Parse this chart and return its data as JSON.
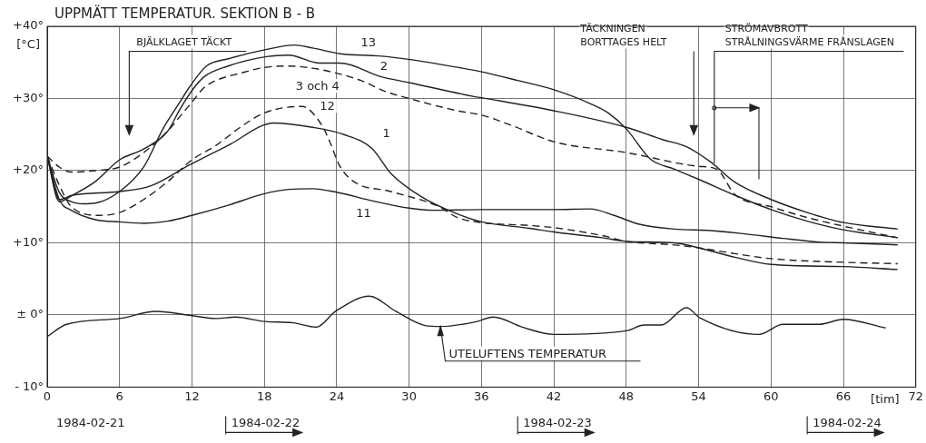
{
  "chart_data": {
    "type": "line",
    "title": "UPPMÄTT TEMPERATUR. SEKTION B - B",
    "ylabel": "[°C]",
    "xlabel": "[tim]",
    "xlim": [
      0,
      72
    ],
    "xticks": [
      0,
      6,
      12,
      18,
      24,
      30,
      36,
      42,
      48,
      54,
      60,
      66,
      72
    ],
    "ylim": [
      -10,
      40
    ],
    "yticks": [
      {
        "value": 40,
        "label": "+40°"
      },
      {
        "value": 30,
        "label": "+30°"
      },
      {
        "value": 20,
        "label": "+20°"
      },
      {
        "value": 10,
        "label": "+10°"
      },
      {
        "value": 0,
        "label": "± 0°"
      },
      {
        "value": -10,
        "label": "- 10°"
      }
    ],
    "grid": true,
    "legend": false,
    "annotations": [
      "BJÄLKLAGET TÄCKT",
      "TÄCKNINGEN\nBORTTAGES HELT",
      {
        "text": "STRÖMAVBROTT\nSTRÅLNINGSVÄRME FRÅNSLAGEN",
        "x": 55.3,
        "y": 21
      },
      "1984-02-21",
      "1984-02-22",
      "1984-02-23",
      "1984-02-24",
      {
        "text": "UTELUFTENS TEMPERATUR",
        "x": 32.6,
        "y": -1.6
      }
    ],
    "series": [
      {
        "name": "13",
        "color": "#222222",
        "line_style": "solid",
        "x": [
          0,
          1,
          2,
          3,
          4,
          6,
          8,
          9.6,
          11,
          11.8,
          13.2,
          15,
          18.2,
          20.5,
          22,
          24.3,
          27.5,
          30.5,
          33,
          36,
          39,
          42,
          45,
          46.5,
          48,
          50,
          52,
          54,
          57,
          60,
          63,
          66,
          70.5
        ],
        "values": [
          22,
          17,
          15.7,
          15.4,
          15.5,
          17.1,
          20.5,
          25.8,
          29.5,
          31.6,
          34.5,
          35.5,
          36.8,
          37.4,
          37,
          36.2,
          35.9,
          35.3,
          34.6,
          33.7,
          32.5,
          31.2,
          29.3,
          28,
          25.8,
          21.6,
          20.2,
          18.8,
          16.6,
          14.6,
          13,
          11.8,
          10.7
        ]
      },
      {
        "name": "2",
        "color": "#222222",
        "line_style": "solid",
        "x": [
          0,
          1,
          2,
          4,
          6,
          8,
          10,
          11,
          12,
          13,
          15,
          18.2,
          20,
          22.6,
          24.3,
          27.7,
          30,
          35.3,
          36,
          42,
          48,
          51,
          53,
          55,
          57,
          60,
          63,
          66,
          70.5
        ],
        "values": [
          22,
          15.7,
          16.5,
          18.5,
          21.5,
          23,
          25.5,
          28.5,
          31.1,
          33,
          34.5,
          35.8,
          36,
          34.9,
          34.9,
          33,
          32.2,
          30.3,
          30.1,
          28.3,
          26,
          24.3,
          23.3,
          21.2,
          18.4,
          16,
          14.2,
          12.8,
          11.9
        ]
      },
      {
        "name": "3 och 4",
        "color": "#222222",
        "line_style": "dashed",
        "x": [
          0,
          1,
          2,
          4,
          6,
          8,
          10,
          11,
          12,
          13,
          14,
          16,
          18,
          20,
          22,
          24,
          26,
          28,
          30,
          34,
          36,
          38.6,
          42,
          48,
          54,
          55.5,
          57,
          60,
          63,
          66,
          70.5
        ],
        "values": [
          22,
          20.5,
          19.8,
          20,
          20.5,
          22.5,
          25.5,
          27.5,
          29.5,
          31.5,
          32.5,
          33.5,
          34.3,
          34.5,
          34.2,
          33.5,
          32.5,
          31,
          30,
          28.3,
          27.7,
          26.2,
          24,
          22.5,
          20.6,
          20.2,
          16.7,
          15,
          13.5,
          12.3,
          10.7
        ]
      },
      {
        "name": "12",
        "color": "#222222",
        "line_style": "dashed",
        "x": [
          0,
          1,
          2,
          4.3,
          6,
          8,
          10,
          12,
          14,
          16,
          18,
          21.1,
          22.8,
          23.5,
          24.2,
          25.4,
          28.5,
          32.5,
          34,
          36,
          40,
          42,
          46,
          48,
          52,
          54,
          57,
          60,
          66,
          70.5
        ],
        "values": [
          22,
          18,
          15,
          13.8,
          14.2,
          16,
          18.5,
          21.5,
          23.5,
          26,
          28,
          28.9,
          26.2,
          23.7,
          20.8,
          18.5,
          17.1,
          15,
          13.5,
          12.8,
          12.4,
          12.1,
          11,
          10.2,
          9.7,
          9.3,
          8.5,
          7.8,
          7.3,
          7.1
        ]
      },
      {
        "name": "1",
        "color": "#222222",
        "line_style": "solid",
        "x": [
          0,
          1,
          2.1,
          6,
          8.6,
          11.8,
          15,
          18.8,
          22,
          24.6,
          26.9,
          28.5,
          31.1,
          34,
          36,
          40,
          42,
          46,
          48,
          52,
          54,
          57,
          60,
          66,
          70.5
        ],
        "values": [
          22,
          16,
          16.6,
          17.1,
          17.9,
          20.8,
          23.5,
          26.6,
          26,
          25,
          23.1,
          19.6,
          16.3,
          14,
          12.9,
          12,
          11.5,
          10.7,
          10.2,
          10,
          9.3,
          8,
          7,
          6.7,
          6.3
        ]
      },
      {
        "name": "11",
        "color": "#222222",
        "line_style": "solid",
        "x": [
          0,
          1,
          2,
          4,
          6,
          8,
          10,
          12,
          15,
          18,
          20,
          22,
          24,
          27,
          30,
          32,
          36,
          42,
          45,
          47,
          49,
          52,
          55,
          58,
          61,
          64,
          66,
          70.5
        ],
        "values": [
          22,
          16,
          14.5,
          13.2,
          12.9,
          12.7,
          13,
          13.8,
          15.2,
          16.8,
          17.4,
          17.5,
          17,
          15.8,
          14.8,
          14.5,
          14.6,
          14.6,
          14.7,
          13.8,
          12.6,
          11.9,
          11.7,
          11.2,
          10.6,
          10.1,
          10,
          9.7
        ]
      },
      {
        "color": "#222222",
        "line_style": "solid",
        "x": [
          0,
          1.6,
          6,
          9,
          12,
          14,
          15.6,
          18,
          20.4,
          22.3,
          23.9,
          26.7,
          28.9,
          31.4,
          32.6,
          35.4,
          37,
          39.4,
          42,
          48,
          49.5,
          50.9,
          53,
          54.1,
          59,
          61,
          64,
          66,
          69.5
        ],
        "values": [
          -3,
          -1.3,
          -0.5,
          0.5,
          -0.1,
          -0.5,
          -0.3,
          -0.9,
          -1.1,
          -1.7,
          0.5,
          2.6,
          0.5,
          -1.5,
          -1.6,
          -1,
          -0.3,
          -1.7,
          -2.7,
          -2.2,
          -1.4,
          -1.4,
          1,
          -0.4,
          -2.7,
          -1.3,
          -1.3,
          -0.6,
          -1.8
        ]
      }
    ]
  }
}
